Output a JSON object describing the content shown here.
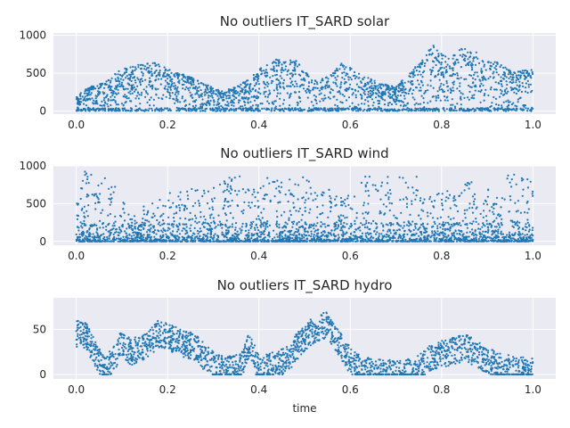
{
  "figure": {
    "xlabel": "time"
  },
  "chart_data": [
    {
      "type": "scatter",
      "title": "No outliers IT_SARD solar",
      "xlim": [
        -0.05,
        1.05
      ],
      "ylim": [
        -40,
        1030
      ],
      "xticks": [
        0.0,
        0.2,
        0.4,
        0.6,
        0.8,
        1.0
      ],
      "xtick_labels": [
        "0.0",
        "0.2",
        "0.4",
        "0.6",
        "0.8",
        "1.0"
      ],
      "yticks": [
        0,
        500,
        1000
      ],
      "ytick_labels": [
        "0",
        "500",
        "1000"
      ],
      "grid": true,
      "color": "#1f77b4",
      "envelope": {
        "x": [
          0.0,
          0.02,
          0.06,
          0.1,
          0.14,
          0.18,
          0.2,
          0.24,
          0.28,
          0.32,
          0.35,
          0.38,
          0.4,
          0.44,
          0.48,
          0.5,
          0.52,
          0.55,
          0.58,
          0.62,
          0.66,
          0.7,
          0.74,
          0.76,
          0.78,
          0.8,
          0.82,
          0.84,
          0.88,
          0.92,
          0.96,
          1.0
        ],
        "y": [
          200,
          300,
          380,
          560,
          620,
          640,
          560,
          480,
          360,
          260,
          330,
          420,
          560,
          690,
          680,
          600,
          400,
          450,
          640,
          500,
          380,
          320,
          560,
          720,
          880,
          760,
          680,
          850,
          780,
          650,
          520,
          560
        ]
      }
    },
    {
      "type": "scatter",
      "title": "No outliers IT_SARD wind",
      "xlim": [
        -0.05,
        1.05
      ],
      "ylim": [
        -50,
        1000
      ],
      "xticks": [
        0.0,
        0.2,
        0.4,
        0.6,
        0.8,
        1.0
      ],
      "xtick_labels": [
        "0.0",
        "0.2",
        "0.4",
        "0.6",
        "0.8",
        "1.0"
      ],
      "yticks": [
        0,
        500,
        1000
      ],
      "ytick_labels": [
        "0",
        "500",
        "1000"
      ],
      "grid": true,
      "color": "#1f77b4",
      "envelope": {
        "x": [
          0.0,
          0.02,
          0.05,
          0.08,
          0.1,
          0.12,
          0.15,
          0.2,
          0.25,
          0.3,
          0.35,
          0.4,
          0.45,
          0.5,
          0.55,
          0.6,
          0.62,
          0.66,
          0.7,
          0.74,
          0.78,
          0.82,
          0.86,
          0.9,
          0.95,
          1.0
        ],
        "y": [
          600,
          950,
          850,
          820,
          700,
          300,
          500,
          650,
          700,
          750,
          900,
          800,
          920,
          850,
          700,
          600,
          900,
          920,
          950,
          900,
          750,
          650,
          800,
          700,
          900,
          850
        ]
      }
    },
    {
      "type": "scatter",
      "title": "No outliers IT_SARD hydro",
      "xlim": [
        -0.05,
        1.05
      ],
      "ylim": [
        -5,
        85
      ],
      "xticks": [
        0.0,
        0.2,
        0.4,
        0.6,
        0.8,
        1.0
      ],
      "xtick_labels": [
        "0.0",
        "0.2",
        "0.4",
        "0.6",
        "0.8",
        "1.0"
      ],
      "yticks": [
        0,
        50
      ],
      "ytick_labels": [
        "0",
        "50"
      ],
      "grid": true,
      "color": "#1f77b4",
      "xlabel": "time",
      "centerline": {
        "x": [
          0.0,
          0.02,
          0.04,
          0.06,
          0.08,
          0.1,
          0.12,
          0.15,
          0.18,
          0.2,
          0.23,
          0.26,
          0.3,
          0.33,
          0.36,
          0.38,
          0.4,
          0.43,
          0.46,
          0.49,
          0.52,
          0.55,
          0.57,
          0.6,
          0.63,
          0.66,
          0.7,
          0.74,
          0.78,
          0.82,
          0.85,
          0.88,
          0.92,
          0.96,
          1.0
        ],
        "y": [
          45,
          44,
          25,
          5,
          15,
          35,
          25,
          30,
          45,
          42,
          35,
          30,
          10,
          5,
          8,
          35,
          5,
          10,
          15,
          35,
          50,
          55,
          40,
          15,
          5,
          2,
          1,
          3,
          20,
          25,
          30,
          22,
          10,
          5,
          3
        ]
      }
    }
  ]
}
